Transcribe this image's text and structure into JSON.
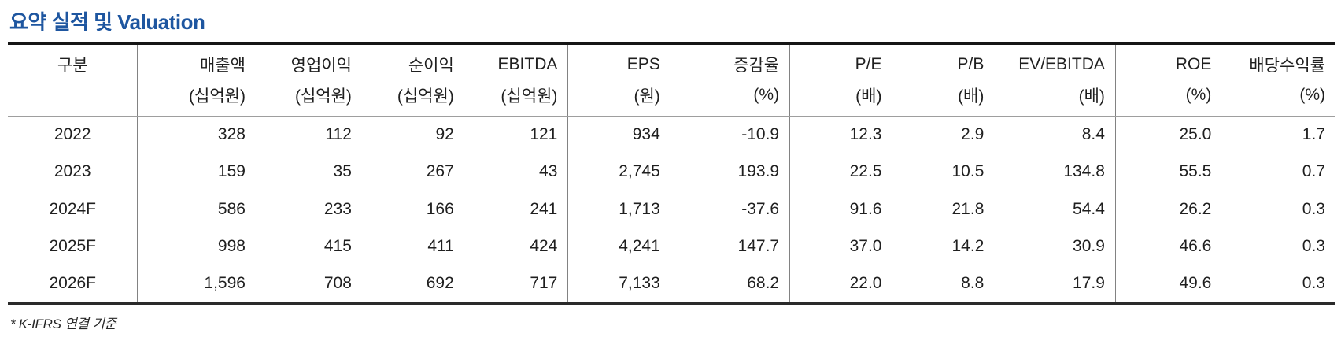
{
  "title": "요약 실적 및 Valuation",
  "colors": {
    "title_blue": "#1e56a0",
    "text": "#1f1f1f",
    "heavy_border": "#161616",
    "light_border": "#9e9e9e"
  },
  "table": {
    "columns": [
      {
        "name": "구분",
        "unit": "",
        "divider_before": false
      },
      {
        "name": "매출액",
        "unit": "(십억원)",
        "divider_before": true
      },
      {
        "name": "영업이익",
        "unit": "(십억원)",
        "divider_before": false
      },
      {
        "name": "순이익",
        "unit": "(십억원)",
        "divider_before": false
      },
      {
        "name": "EBITDA",
        "unit": "(십억원)",
        "divider_before": false
      },
      {
        "name": "EPS",
        "unit": "(원)",
        "divider_before": true
      },
      {
        "name": "증감율",
        "unit": "(%)",
        "divider_before": false
      },
      {
        "name": "P/E",
        "unit": "(배)",
        "divider_before": true
      },
      {
        "name": "P/B",
        "unit": "(배)",
        "divider_before": false
      },
      {
        "name": "EV/EBITDA",
        "unit": "(배)",
        "divider_before": false
      },
      {
        "name": "ROE",
        "unit": "(%)",
        "divider_before": true
      },
      {
        "name": "배당수익률",
        "unit": "(%)",
        "divider_before": false
      }
    ],
    "rows": [
      {
        "label": "2022",
        "values": [
          "328",
          "112",
          "92",
          "121",
          "934",
          "-10.9",
          "12.3",
          "2.9",
          "8.4",
          "25.0",
          "1.7"
        ]
      },
      {
        "label": "2023",
        "values": [
          "159",
          "35",
          "267",
          "43",
          "2,745",
          "193.9",
          "22.5",
          "10.5",
          "134.8",
          "55.5",
          "0.7"
        ]
      },
      {
        "label": "2024F",
        "values": [
          "586",
          "233",
          "166",
          "241",
          "1,713",
          "-37.6",
          "91.6",
          "21.8",
          "54.4",
          "26.2",
          "0.3"
        ]
      },
      {
        "label": "2025F",
        "values": [
          "998",
          "415",
          "411",
          "424",
          "4,241",
          "147.7",
          "37.0",
          "14.2",
          "30.9",
          "46.6",
          "0.3"
        ]
      },
      {
        "label": "2026F",
        "values": [
          "1,596",
          "708",
          "692",
          "717",
          "7,133",
          "68.2",
          "22.0",
          "8.8",
          "17.9",
          "49.6",
          "0.3"
        ]
      }
    ],
    "footnote": "* K-IFRS 연결 기준"
  }
}
